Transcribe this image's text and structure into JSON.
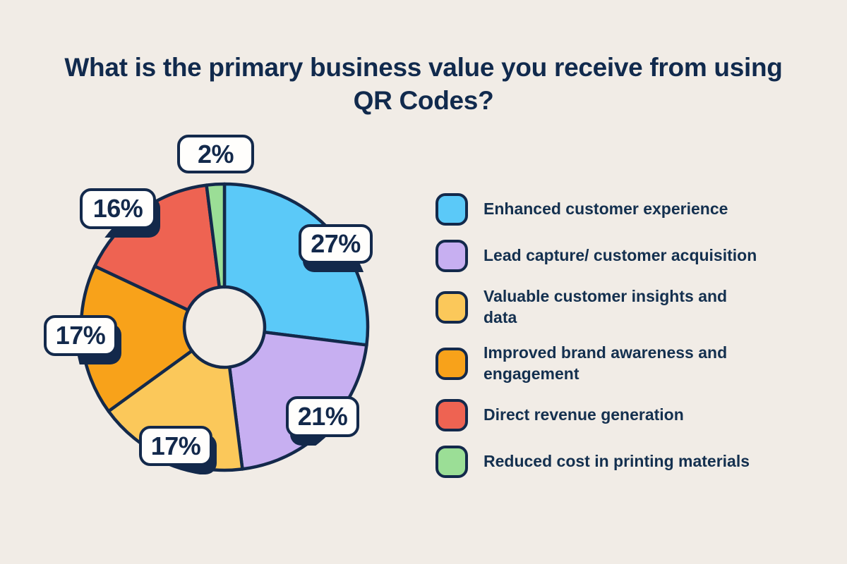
{
  "chart_data": {
    "type": "pie",
    "subtype": "donut",
    "title": "What is the primary business value you receive from using\nQR Codes?",
    "unit": "%",
    "legend_position": "right",
    "start_angle_deg": 0,
    "direction": "clockwise",
    "total": 100,
    "slices": [
      {
        "label": "Enhanced customer experience",
        "value": 27,
        "display": "27%",
        "color": "#5BC9F8"
      },
      {
        "label": "Lead capture/ customer acquisition",
        "value": 21,
        "display": "21%",
        "color": "#C7AFF1"
      },
      {
        "label": "Valuable customer insights and data",
        "value": 17,
        "display": "17%",
        "color": "#FBC85A"
      },
      {
        "label": "Improved brand awareness and\nengagement",
        "value": 17,
        "display": "17%",
        "color": "#F8A21A"
      },
      {
        "label": "Direct revenue generation",
        "value": 16,
        "display": "16%",
        "color": "#EE6352"
      },
      {
        "label": "Reduced cost in printing materials",
        "value": 2,
        "display": "2%",
        "color": "#9BDE96"
      }
    ],
    "colors": {
      "background": "#F1ECE6",
      "outline_ink": "#13294B",
      "label_box_fill": "#FFFEFC"
    }
  }
}
